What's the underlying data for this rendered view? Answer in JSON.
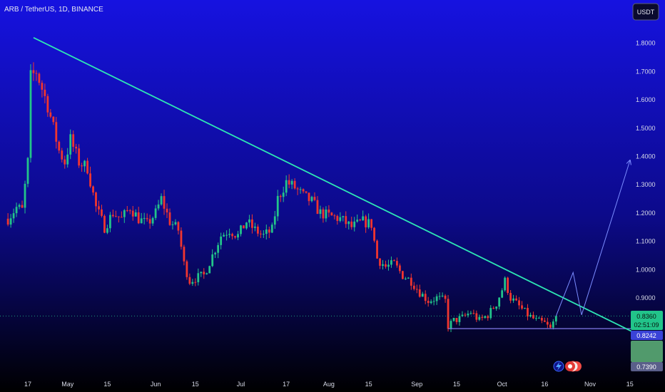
{
  "header": {
    "symbol_title": "ARB / TetherUS, 1D, BINANCE",
    "currency_button": "USDT"
  },
  "price_tags": {
    "last_price": "0.8360",
    "countdown": "02:51:09",
    "level_price": "0.8242",
    "low_price": "0.7390"
  },
  "colors": {
    "background_top": "#1612e0",
    "background_bottom": "#000000",
    "bull_candle": "#22c48a",
    "bear_candle": "#f0352f",
    "trendline": "#2ee6b4",
    "projection": "#7b8cff",
    "support_line": "#8f86ff"
  },
  "icons": [
    "lightning-icon",
    "event-flags-icon"
  ],
  "chart_data": {
    "type": "candlestick",
    "title": "ARB / TetherUS, 1D, BINANCE",
    "y_axis": {
      "scale": "linear",
      "ylim": [
        0.7,
        1.91
      ],
      "ticks": [
        "0.9000",
        "1.0000",
        "1.1000",
        "1.2000",
        "1.3000",
        "1.4000",
        "1.5000",
        "1.6000",
        "1.7000",
        "1.8000"
      ],
      "position": "right"
    },
    "x_axis": {
      "ticks": [
        {
          "label": "17",
          "date": "2023-04-17"
        },
        {
          "label": "May",
          "date": "2023-05-01"
        },
        {
          "label": "15",
          "date": "2023-05-15"
        },
        {
          "label": "Jun",
          "date": "2023-06-01"
        },
        {
          "label": "15",
          "date": "2023-06-15"
        },
        {
          "label": "Jul",
          "date": "2023-07-01"
        },
        {
          "label": "17",
          "date": "2023-07-17"
        },
        {
          "label": "Aug",
          "date": "2023-08-01"
        },
        {
          "label": "15",
          "date": "2023-08-15"
        },
        {
          "label": "Sep",
          "date": "2023-09-01"
        },
        {
          "label": "15",
          "date": "2023-09-15"
        },
        {
          "label": "Oct",
          "date": "2023-10-01"
        },
        {
          "label": "16",
          "date": "2023-10-16"
        },
        {
          "label": "Nov",
          "date": "2023-11-01"
        },
        {
          "label": "15",
          "date": "2023-11-15"
        }
      ]
    },
    "price_path": [
      [
        "2023-04-10",
        1.18
      ],
      [
        "2023-04-13",
        1.22
      ],
      [
        "2023-04-15",
        1.21
      ],
      [
        "2023-04-17",
        1.38
      ],
      [
        "2023-04-18",
        1.68
      ],
      [
        "2023-04-20",
        1.7
      ],
      [
        "2023-04-22",
        1.64
      ],
      [
        "2023-04-24",
        1.58
      ],
      [
        "2023-04-26",
        1.5
      ],
      [
        "2023-04-28",
        1.42
      ],
      [
        "2023-04-30",
        1.38
      ],
      [
        "2023-05-02",
        1.46
      ],
      [
        "2023-05-05",
        1.38
      ],
      [
        "2023-05-08",
        1.36
      ],
      [
        "2023-05-11",
        1.22
      ],
      [
        "2023-05-14",
        1.15
      ],
      [
        "2023-05-17",
        1.2
      ],
      [
        "2023-05-20",
        1.18
      ],
      [
        "2023-05-23",
        1.22
      ],
      [
        "2023-05-26",
        1.18
      ],
      [
        "2023-05-29",
        1.16
      ],
      [
        "2023-06-01",
        1.2
      ],
      [
        "2023-06-03",
        1.25
      ],
      [
        "2023-06-06",
        1.17
      ],
      [
        "2023-06-09",
        1.14
      ],
      [
        "2023-06-11",
        1.02
      ],
      [
        "2023-06-13",
        0.96
      ],
      [
        "2023-06-15",
        0.97
      ],
      [
        "2023-06-18",
        0.98
      ],
      [
        "2023-06-21",
        1.05
      ],
      [
        "2023-06-24",
        1.12
      ],
      [
        "2023-06-27",
        1.14
      ],
      [
        "2023-06-30",
        1.12
      ],
      [
        "2023-07-03",
        1.17
      ],
      [
        "2023-07-06",
        1.14
      ],
      [
        "2023-07-09",
        1.12
      ],
      [
        "2023-07-12",
        1.14
      ],
      [
        "2023-07-14",
        1.25
      ],
      [
        "2023-07-17",
        1.31
      ],
      [
        "2023-07-20",
        1.29
      ],
      [
        "2023-07-23",
        1.26
      ],
      [
        "2023-07-26",
        1.24
      ],
      [
        "2023-07-29",
        1.2
      ],
      [
        "2023-08-01",
        1.19
      ],
      [
        "2023-08-05",
        1.18
      ],
      [
        "2023-08-09",
        1.15
      ],
      [
        "2023-08-13",
        1.17
      ],
      [
        "2023-08-16",
        1.16
      ],
      [
        "2023-08-18",
        1.04
      ],
      [
        "2023-08-21",
        1.01
      ],
      [
        "2023-08-24",
        1.02
      ],
      [
        "2023-08-27",
        0.98
      ],
      [
        "2023-08-30",
        0.96
      ],
      [
        "2023-09-02",
        0.92
      ],
      [
        "2023-09-05",
        0.89
      ],
      [
        "2023-09-08",
        0.9
      ],
      [
        "2023-09-11",
        0.89
      ],
      [
        "2023-09-12",
        0.8
      ],
      [
        "2023-09-14",
        0.82
      ],
      [
        "2023-09-17",
        0.83
      ],
      [
        "2023-09-20",
        0.85
      ],
      [
        "2023-09-23",
        0.82
      ],
      [
        "2023-09-26",
        0.84
      ],
      [
        "2023-09-29",
        0.88
      ],
      [
        "2023-10-01",
        0.93
      ],
      [
        "2023-10-02",
        0.96
      ],
      [
        "2023-10-04",
        0.9
      ],
      [
        "2023-10-07",
        0.87
      ],
      [
        "2023-10-10",
        0.84
      ],
      [
        "2023-10-13",
        0.82
      ],
      [
        "2023-10-16",
        0.81
      ],
      [
        "2023-10-18",
        0.79
      ],
      [
        "2023-10-20",
        0.836
      ]
    ],
    "drawings": {
      "trendline": {
        "from": [
          "2023-04-19",
          1.82
        ],
        "to": [
          "2023-11-18",
          0.77
        ]
      },
      "support_line": {
        "from": [
          "2023-09-12",
          0.7915
        ],
        "to": [
          "2023-11-20",
          0.7915
        ]
      },
      "projection_path": [
        [
          "2023-10-20",
          0.836
        ],
        [
          "2023-10-26",
          0.99
        ],
        [
          "2023-10-29",
          0.84
        ],
        [
          "2023-11-15",
          1.385
        ]
      ],
      "last_price_line": 0.836
    }
  }
}
